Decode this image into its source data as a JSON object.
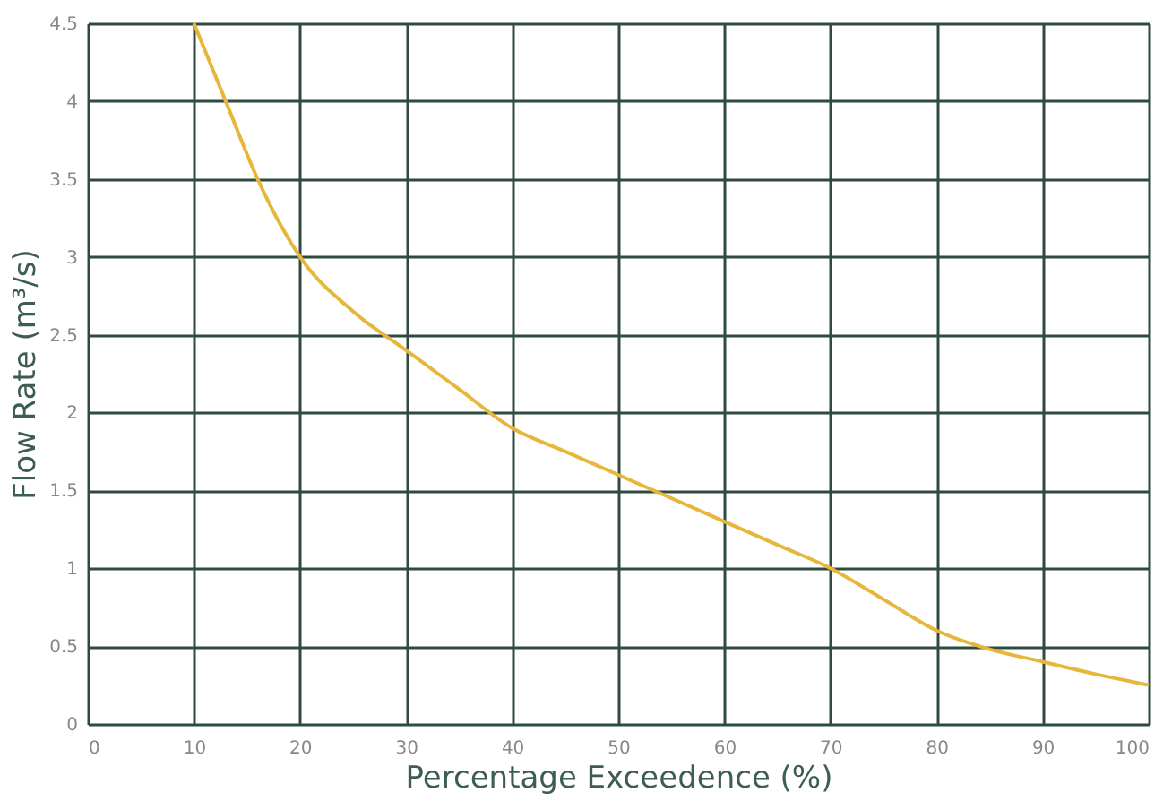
{
  "chart_data": {
    "type": "line",
    "xlabel": "Percentage Exceedence (%)",
    "ylabel": "Flow Rate (m³/s)",
    "x": [
      10,
      13,
      16,
      20,
      25,
      30,
      35,
      40,
      45,
      50,
      55,
      60,
      65,
      70,
      75,
      80,
      85,
      90,
      95,
      100
    ],
    "series": [
      {
        "color": "#e6b73c",
        "values": [
          4.5,
          4.0,
          3.5,
          3.0,
          2.65,
          2.4,
          2.15,
          1.9,
          1.75,
          1.6,
          1.45,
          1.3,
          1.15,
          1.0,
          0.8,
          0.6,
          0.48,
          0.4,
          0.32,
          0.25
        ]
      }
    ],
    "xlim": [
      0,
      100
    ],
    "xticks": [
      0,
      10,
      20,
      30,
      40,
      50,
      60,
      70,
      80,
      90,
      100
    ],
    "ylim": [
      0,
      4.5
    ],
    "yticks": [
      0,
      0.5,
      1,
      1.5,
      2,
      2.5,
      3,
      3.5,
      4,
      4.5
    ],
    "grid": true,
    "marker": "none",
    "line_style": "solid"
  }
}
